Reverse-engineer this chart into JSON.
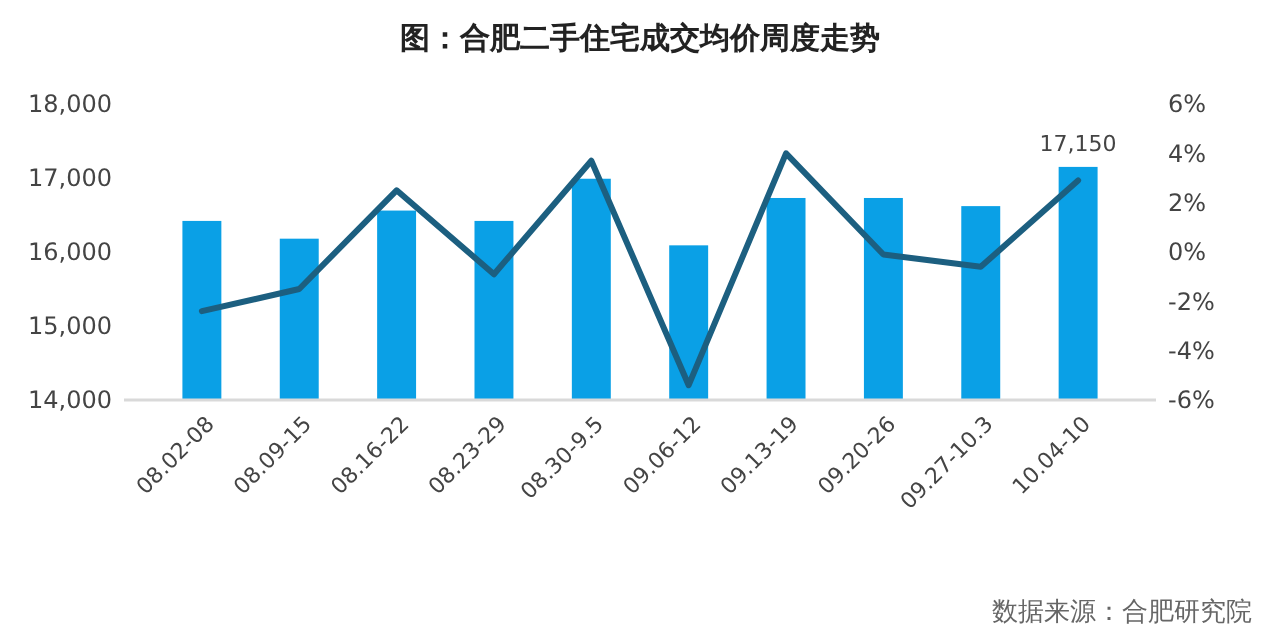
{
  "chart_data": {
    "type": "bar",
    "title": "图：合肥二手住宅成交均价周度走势",
    "categories": [
      "08.02-08",
      "08.09-15",
      "08.16-22",
      "08.23-29",
      "08.30-9.5",
      "09.06-12",
      "09.13-19",
      "09.20-26",
      "09.27-10.3",
      "10.04-10"
    ],
    "series": [
      {
        "color": "#0aa0e6",
        "values": [
          16420,
          16180,
          16560,
          16420,
          16990,
          16090,
          16730,
          16730,
          16620,
          17150
        ],
        "value_labels": [
          null,
          null,
          null,
          null,
          null,
          null,
          null,
          null,
          null,
          "17,150"
        ]
      },
      {
        "type": "line",
        "axis": "y2",
        "color": "#1c5f80",
        "values": [
          -2.4,
          -1.5,
          2.5,
          -0.9,
          3.7,
          -5.4,
          4.0,
          -0.1,
          -0.6,
          2.9
        ]
      }
    ],
    "ylim": [
      14000,
      18000
    ],
    "yticks": [
      {
        "value": 14000,
        "label": "14,000"
      },
      {
        "value": 15000,
        "label": "15,000"
      },
      {
        "value": 16000,
        "label": "16,000"
      },
      {
        "value": 17000,
        "label": "17,000"
      },
      {
        "value": 18000,
        "label": "18,000"
      }
    ],
    "y2lim": [
      -6,
      6
    ],
    "y2ticks": [
      {
        "value": -6,
        "label": "-6%"
      },
      {
        "value": -4,
        "label": "-4%"
      },
      {
        "value": -2,
        "label": "-2%"
      },
      {
        "value": 0,
        "label": "0%"
      },
      {
        "value": 2,
        "label": "2%"
      },
      {
        "value": 4,
        "label": "4%"
      },
      {
        "value": 6,
        "label": "6%"
      }
    ],
    "grid": false,
    "marker": "none",
    "line_style": "solid",
    "annotations": [
      "数据来源：合肥研究院"
    ]
  }
}
